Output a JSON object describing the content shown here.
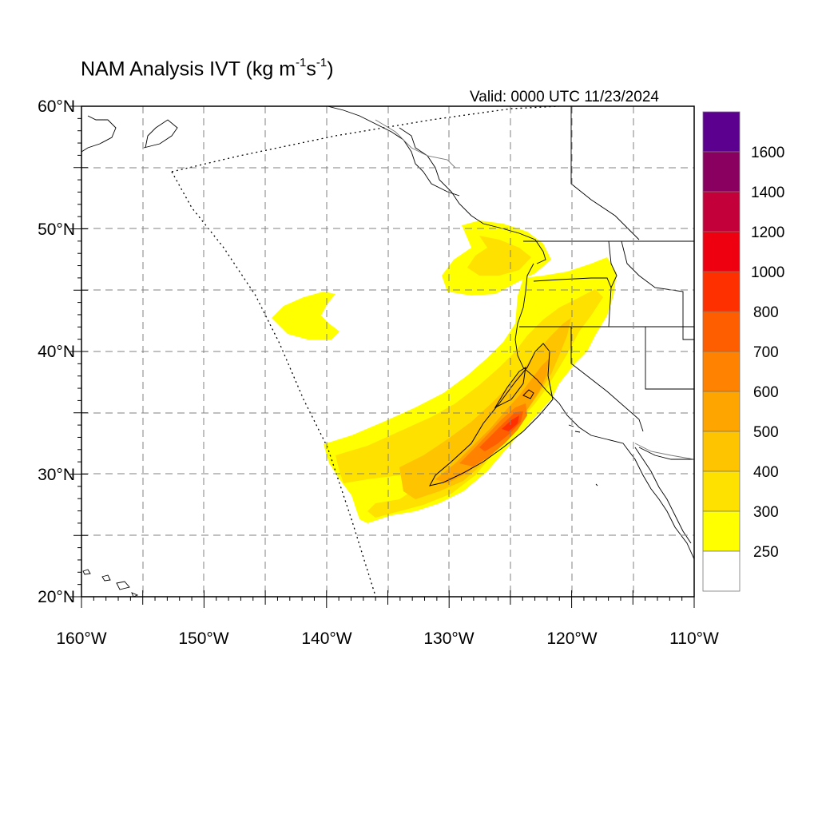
{
  "title": {
    "text": "NAM Analysis IVT (kg m",
    "sup1": "-1",
    "mid": "s",
    "sup2": "-1",
    "end": ")"
  },
  "valid_time": "Valid: 0000 UTC 11/23/2024",
  "axes": {
    "lat_labels": [
      "60°N",
      "50°N",
      "40°N",
      "30°N",
      "20°N"
    ],
    "lon_labels": [
      "160°W",
      "150°W",
      "140°W",
      "130°W",
      "120°W",
      "110°W"
    ],
    "lat_range": [
      20,
      60
    ],
    "lon_range": [
      -160,
      -110
    ],
    "grid": "dashed, every 5 degrees"
  },
  "colorbar": {
    "labels": [
      "1600",
      "1400",
      "1200",
      "1000",
      "800",
      "700",
      "600",
      "500",
      "400",
      "300",
      "250"
    ],
    "levels": [
      250,
      300,
      400,
      500,
      600,
      700,
      800,
      1000,
      1200,
      1400,
      1600
    ],
    "colors": [
      "#ffffff",
      "#ffff00",
      "#ffe100",
      "#ffc400",
      "#ffa500",
      "#ff8200",
      "#ff5e00",
      "#ff3000",
      "#ee0010",
      "#c4003a",
      "#8a0060",
      "#5c0090"
    ]
  },
  "colors": {
    "coast": "#000000",
    "grid": "#808080",
    "border_gray": "#777777",
    "ivt_250": "#ffff00",
    "ivt_300": "#ffe100",
    "ivt_400": "#ffc400",
    "ivt_500": "#ffa500",
    "ivt_600": "#ff8200",
    "ivt_700": "#ff5e00",
    "ivt_800": "#ff3000"
  }
}
